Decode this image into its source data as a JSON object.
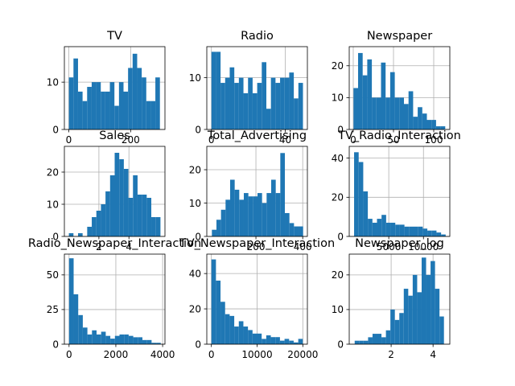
{
  "chart_data": [
    {
      "type": "bar",
      "title": "TV",
      "bar_color": "#1f77b4",
      "grid": true,
      "xlim": [
        -14,
        311
      ],
      "ylim": [
        0,
        17.5
      ],
      "xticks": [
        0,
        200
      ],
      "yticks": [
        0,
        10
      ],
      "bins": {
        "start": 0.7,
        "width": 14.7,
        "counts": [
          11,
          15,
          8,
          6,
          9,
          10,
          10,
          8,
          8,
          10,
          5,
          10,
          8,
          13,
          16,
          13,
          11,
          6,
          6,
          11
        ]
      }
    },
    {
      "type": "bar",
      "title": "Radio",
      "bar_color": "#1f77b4",
      "grid": true,
      "xlim": [
        -2.5,
        52
      ],
      "ylim": [
        0,
        16
      ],
      "xticks": [
        0,
        40
      ],
      "yticks": [
        0,
        10
      ],
      "bins": {
        "start": 0,
        "width": 2.48,
        "counts": [
          15,
          15,
          9,
          10,
          12,
          9,
          10,
          7,
          10,
          7,
          9,
          13,
          4,
          10,
          9,
          10,
          10,
          11,
          6,
          9
        ]
      }
    },
    {
      "type": "bar",
      "title": "Newspaper",
      "bar_color": "#1f77b4",
      "grid": true,
      "xlim": [
        -5,
        120
      ],
      "ylim": [
        0,
        26
      ],
      "xticks": [
        0,
        50,
        100
      ],
      "yticks": [
        0,
        10,
        20
      ],
      "bins": {
        "start": 0.3,
        "width": 5.7,
        "counts": [
          13,
          24,
          17,
          22,
          10,
          10,
          21,
          10,
          18,
          10,
          10,
          8,
          12,
          4,
          7,
          5,
          3,
          3,
          1,
          1
        ]
      }
    },
    {
      "type": "bar",
      "title": "Sales",
      "bar_color": "#1f77b4",
      "grid": true,
      "xlim": [
        -0.3,
        6.4
      ],
      "ylim": [
        0,
        28
      ],
      "xticks": [
        2,
        4
      ],
      "yticks": [
        0,
        10,
        20
      ],
      "bins": {
        "start": 0,
        "width": 0.305,
        "counts": [
          1,
          0,
          1,
          0,
          3,
          6,
          8,
          10,
          14,
          19,
          26,
          24,
          21,
          12,
          19,
          13,
          13,
          12,
          6,
          6
        ]
      }
    },
    {
      "type": "bar",
      "title": "Total_Advertising",
      "bar_color": "#1f77b4",
      "grid": true,
      "xlim": [
        -10,
        420
      ],
      "ylim": [
        0,
        27
      ],
      "xticks": [
        200,
        400
      ],
      "yticks": [
        0,
        10,
        20
      ],
      "bins": {
        "start": 11.7,
        "width": 19.5,
        "counts": [
          2,
          5,
          8,
          11,
          17,
          14,
          11,
          13,
          12,
          12,
          13,
          10,
          13,
          17,
          13,
          25,
          7,
          4,
          3,
          3
        ]
      }
    },
    {
      "type": "bar",
      "title": "TV_Radio_Interaction",
      "bar_color": "#1f77b4",
      "grid": true,
      "xlim": [
        -700,
        13800
      ],
      "ylim": [
        0,
        46
      ],
      "xticks": [
        5000,
        10000
      ],
      "yticks": [
        0,
        20,
        40
      ],
      "bins": {
        "start": 0,
        "width": 660,
        "counts": [
          43,
          38,
          23,
          9,
          7,
          9,
          11,
          7,
          7,
          6,
          6,
          5,
          5,
          5,
          5,
          4,
          3,
          3,
          2,
          1
        ]
      }
    },
    {
      "type": "bar",
      "title": "Radio_Newspaper_Interaction",
      "bar_color": "#1f77b4",
      "grid": true,
      "xlim": [
        -200,
        4100
      ],
      "ylim": [
        0,
        65
      ],
      "xticks": [
        0,
        2000,
        4000
      ],
      "yticks": [
        0,
        25,
        50
      ],
      "bins": {
        "start": 0,
        "width": 196,
        "counts": [
          62,
          36,
          21,
          12,
          7,
          10,
          7,
          9,
          6,
          4,
          6,
          7,
          7,
          6,
          5,
          5,
          3,
          3,
          1,
          1
        ]
      }
    },
    {
      "type": "bar",
      "title": "TV_Newspaper_Interaction",
      "bar_color": "#1f77b4",
      "grid": true,
      "xlim": [
        -1000,
        21000
      ],
      "ylim": [
        0,
        51
      ],
      "xticks": [
        0,
        10000,
        20000
      ],
      "yticks": [
        0,
        20,
        40
      ],
      "bins": {
        "start": 0,
        "width": 1000,
        "counts": [
          48,
          36,
          24,
          17,
          16,
          10,
          13,
          10,
          8,
          6,
          6,
          3,
          5,
          4,
          4,
          2,
          3,
          2,
          1,
          3
        ]
      }
    },
    {
      "type": "bar",
      "title": "Newspaper_log",
      "bar_color": "#1f77b4",
      "grid": true,
      "xlim": [
        0.0,
        4.8
      ],
      "ylim": [
        0,
        26
      ],
      "xticks": [
        2,
        4
      ],
      "yticks": [
        0,
        10,
        20
      ],
      "bins": {
        "start": 0.26,
        "width": 0.213,
        "counts": [
          1,
          1,
          1,
          2,
          3,
          3,
          2,
          4,
          10,
          7,
          9,
          16,
          14,
          20,
          15,
          25,
          20,
          24,
          16,
          8
        ]
      }
    }
  ]
}
